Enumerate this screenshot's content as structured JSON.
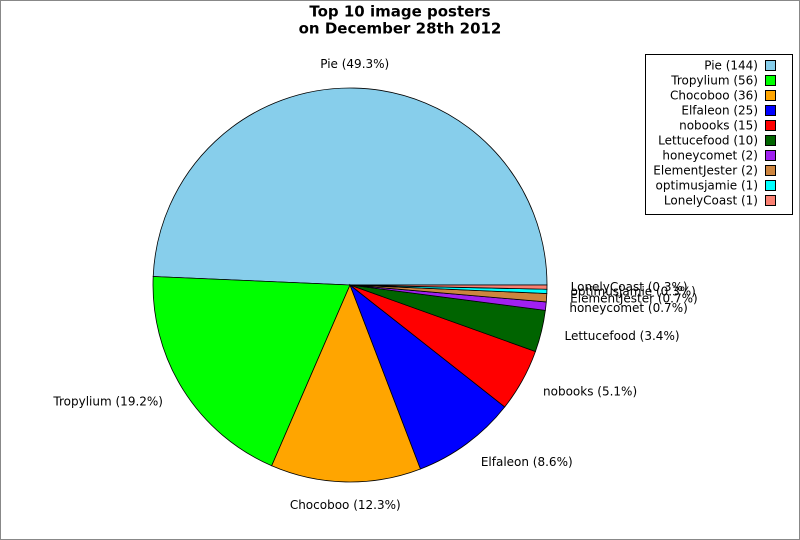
{
  "chart_data": {
    "type": "pie",
    "title": "Top 10 image posters",
    "subtitle": "on December 28th 2012",
    "categories": [
      "Pie",
      "Tropylium",
      "Chocoboo",
      "Elfaleon",
      "nobooks",
      "Lettucefood",
      "honeycomet",
      "ElementJester",
      "optimusjamie",
      "LonelyCoast"
    ],
    "values": [
      144,
      56,
      36,
      25,
      15,
      10,
      2,
      2,
      1,
      1
    ],
    "value_labels": [
      "Pie (144)",
      "Tropylium (56)",
      "Chocoboo (36)",
      "Elfaleon (25)",
      "nobooks (15)",
      "Lettucefood (10)",
      "honeycomet (2)",
      "ElementJester (2)",
      "optimusjamie (1)",
      "LonelyCoast (1)"
    ],
    "slice_labels": [
      "Pie (49.3%)",
      "Tropylium (19.2%)",
      "Chocoboo (12.3%)",
      "Elfaleon (8.6%)",
      "nobooks (5.1%)",
      "Lettucefood (3.4%)",
      "honeycomet (0.7%)",
      "ElementJester (0.7%)",
      "optimusjamie (0.3%)",
      "LonelyCoast (0.3%)"
    ],
    "colors": [
      "#87ceeb",
      "#00ff00",
      "#ffa500",
      "#0000ff",
      "#ff0000",
      "#006400",
      "#a020f0",
      "#cd853f",
      "#00ffff",
      "#fa8072"
    ],
    "legend": "top-right"
  }
}
